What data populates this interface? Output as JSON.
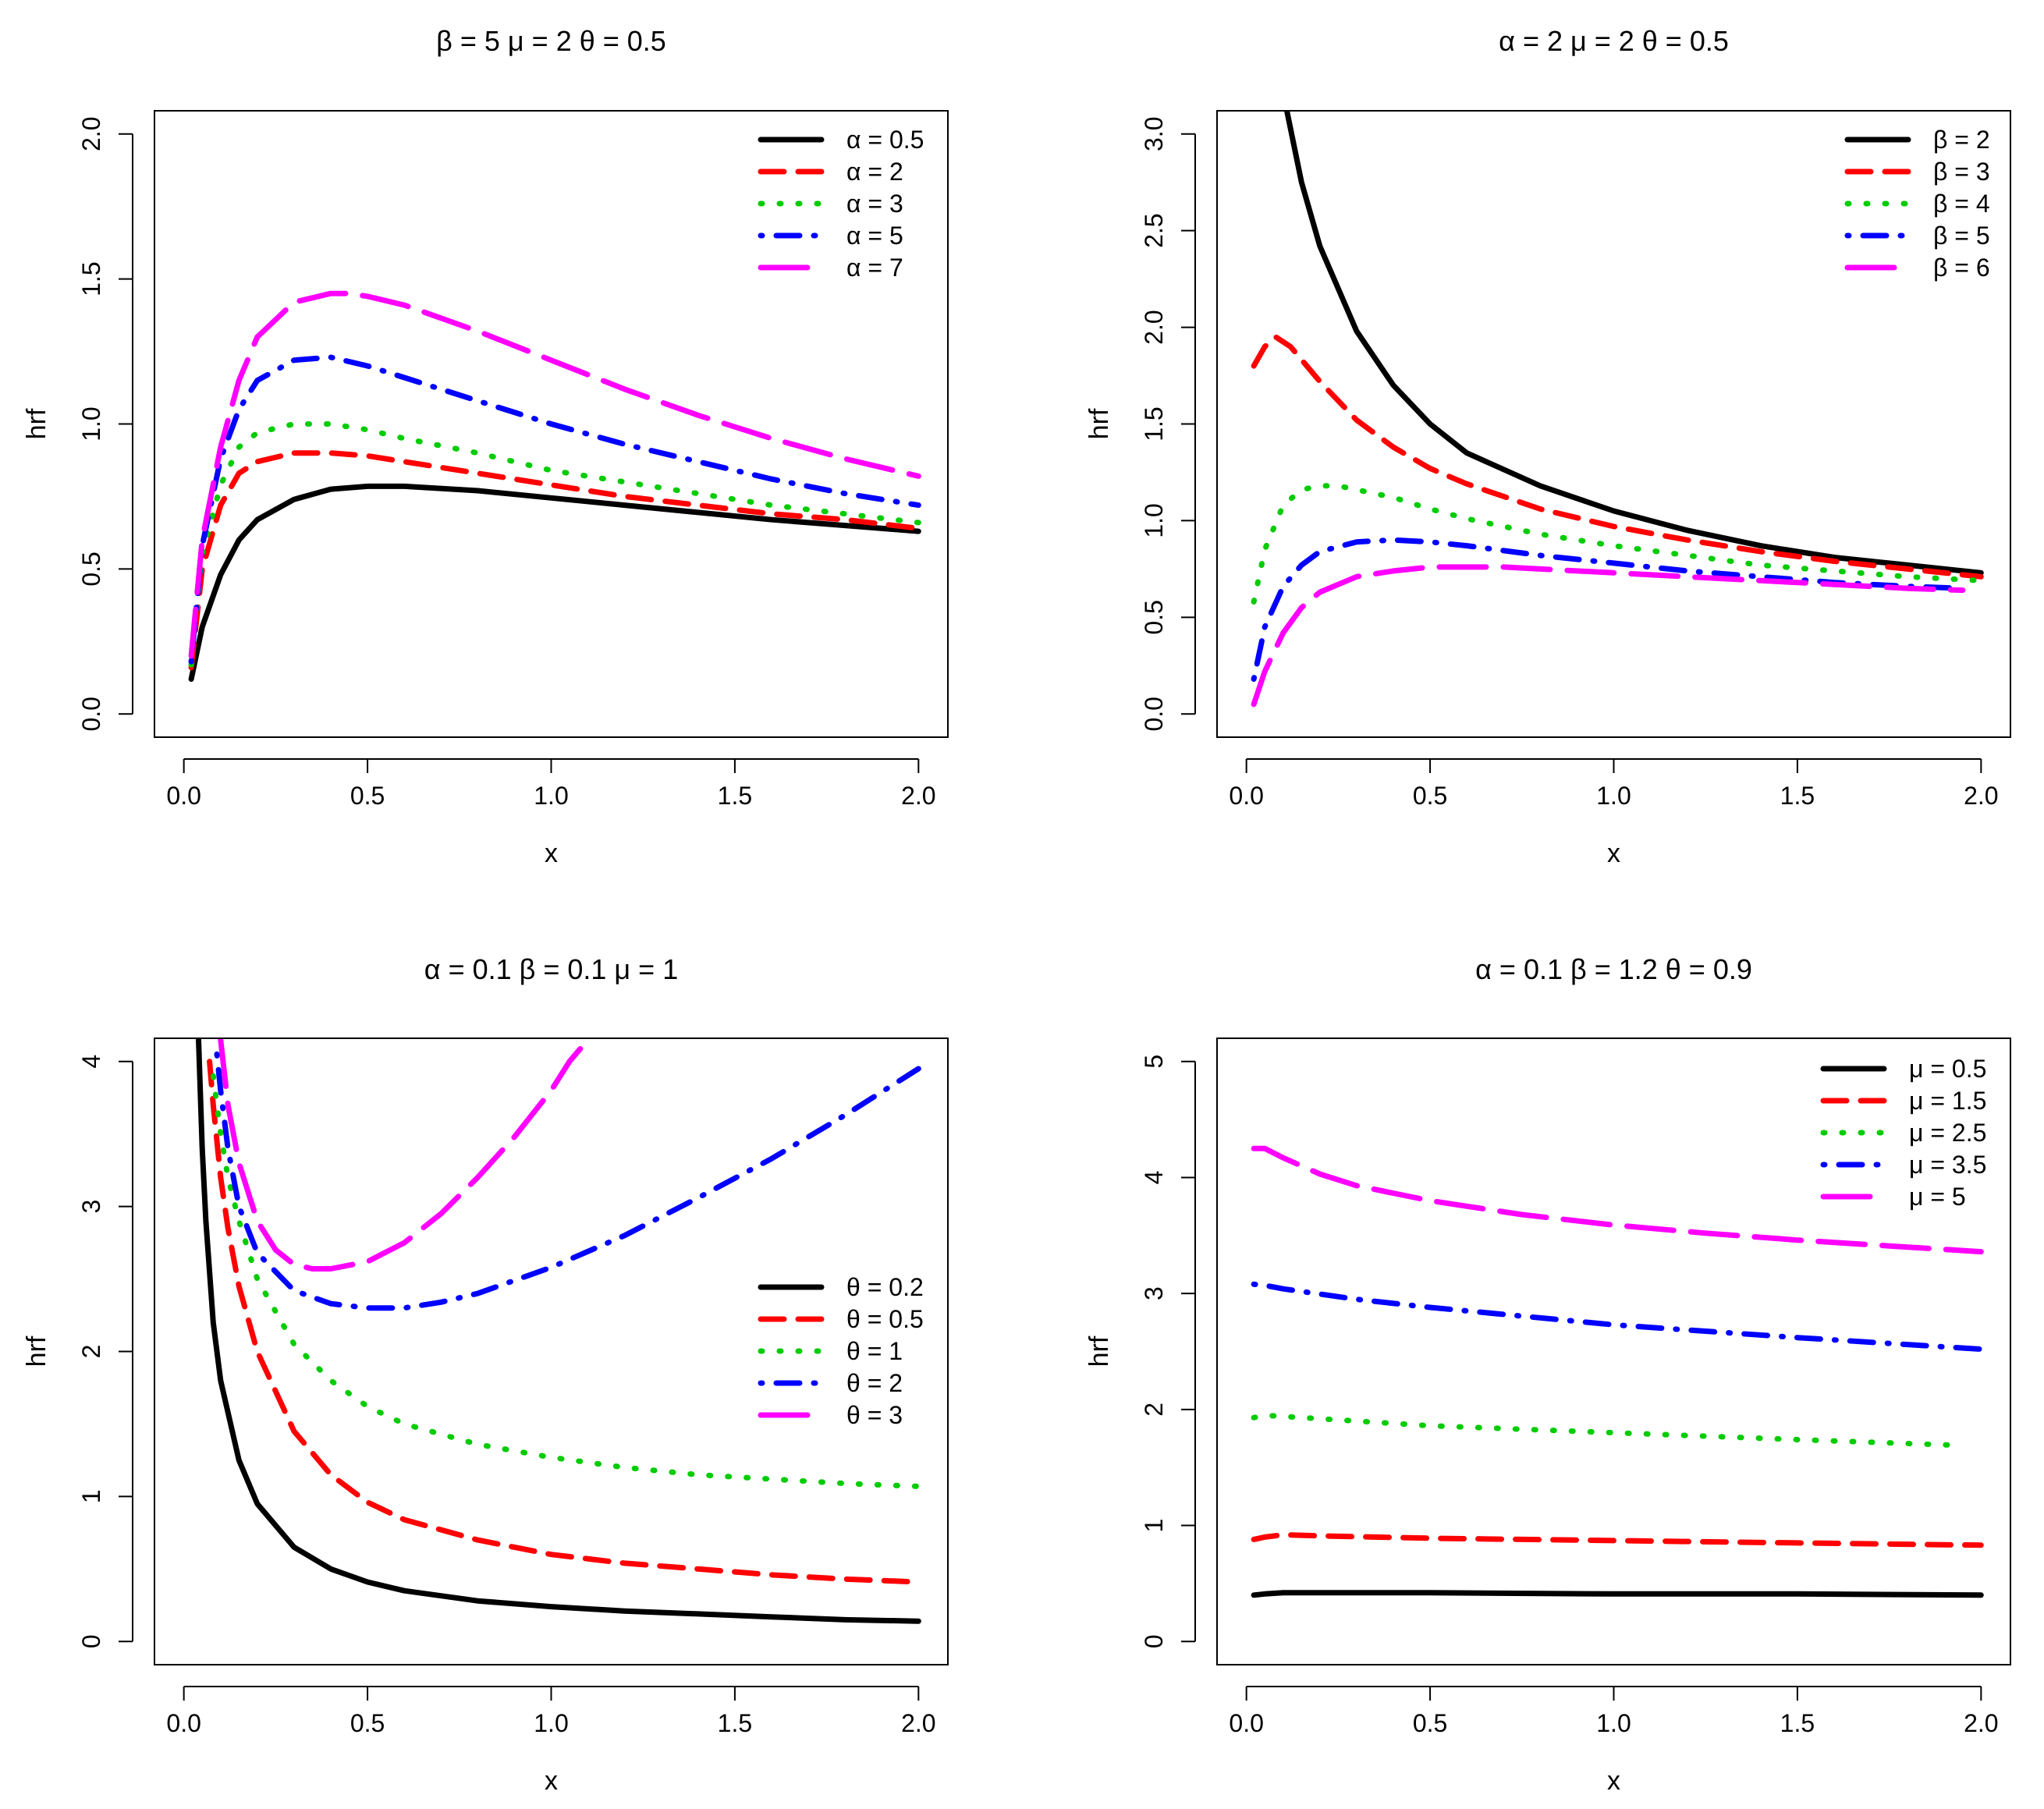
{
  "chart_data": [
    {
      "type": "line",
      "title": "β = 5  μ = 2  θ = 0.5",
      "xlabel": "x",
      "ylabel": "hrf",
      "xlim": [
        0,
        2
      ],
      "ylim": [
        0,
        2
      ],
      "xticks": [
        0,
        0.5,
        1,
        1.5,
        2
      ],
      "xtick_labels": [
        "0.0",
        "0.5",
        "1.0",
        "1.5",
        "2.0"
      ],
      "yticks": [
        0,
        0.5,
        1,
        1.5,
        2
      ],
      "ytick_labels": [
        "0.0",
        "0.5",
        "1.0",
        "1.5",
        "2.0"
      ],
      "legend_position": "top-right",
      "series": [
        {
          "name": "α = 0.5",
          "color": "#000000",
          "dash": "solid",
          "x": [
            0.02,
            0.05,
            0.1,
            0.15,
            0.2,
            0.3,
            0.4,
            0.5,
            0.6,
            0.8,
            1.0,
            1.2,
            1.4,
            1.6,
            1.8,
            2.0
          ],
          "y": [
            0.12,
            0.3,
            0.48,
            0.6,
            0.67,
            0.74,
            0.775,
            0.785,
            0.785,
            0.77,
            0.745,
            0.72,
            0.695,
            0.67,
            0.65,
            0.63
          ]
        },
        {
          "name": "α = 2",
          "color": "#ff0000",
          "dash": "dashed",
          "x": [
            0.02,
            0.05,
            0.1,
            0.15,
            0.2,
            0.3,
            0.4,
            0.5,
            0.6,
            0.8,
            1.0,
            1.2,
            1.4,
            1.6,
            1.8,
            2.0
          ],
          "y": [
            0.16,
            0.5,
            0.72,
            0.83,
            0.87,
            0.9,
            0.9,
            0.89,
            0.87,
            0.83,
            0.79,
            0.75,
            0.72,
            0.69,
            0.67,
            0.64
          ]
        },
        {
          "name": "α = 3",
          "color": "#00cc00",
          "dash": "dotted",
          "x": [
            0.02,
            0.05,
            0.1,
            0.15,
            0.2,
            0.3,
            0.4,
            0.5,
            0.6,
            0.8,
            1.0,
            1.2,
            1.4,
            1.6,
            1.8,
            2.0
          ],
          "y": [
            0.17,
            0.55,
            0.79,
            0.92,
            0.97,
            1.0,
            1.0,
            0.98,
            0.95,
            0.9,
            0.84,
            0.8,
            0.76,
            0.72,
            0.69,
            0.66
          ]
        },
        {
          "name": "α = 5",
          "color": "#0000ff",
          "dash": "dotdash",
          "x": [
            0.02,
            0.05,
            0.1,
            0.15,
            0.2,
            0.3,
            0.4,
            0.5,
            0.6,
            0.8,
            1.0,
            1.2,
            1.4,
            1.6,
            1.8,
            2.0
          ],
          "y": [
            0.18,
            0.58,
            0.88,
            1.05,
            1.15,
            1.22,
            1.23,
            1.2,
            1.16,
            1.08,
            1.0,
            0.93,
            0.87,
            0.81,
            0.76,
            0.72
          ]
        },
        {
          "name": "α = 7",
          "color": "#ff00ff",
          "dash": "longdash",
          "x": [
            0.02,
            0.05,
            0.1,
            0.15,
            0.2,
            0.3,
            0.4,
            0.45,
            0.5,
            0.6,
            0.8,
            1.0,
            1.2,
            1.4,
            1.6,
            1.8,
            2.0
          ],
          "y": [
            0.2,
            0.6,
            0.92,
            1.15,
            1.3,
            1.42,
            1.45,
            1.45,
            1.44,
            1.41,
            1.32,
            1.22,
            1.12,
            1.03,
            0.95,
            0.88,
            0.82
          ]
        }
      ]
    },
    {
      "type": "line",
      "title": "α = 2  μ = 2  θ = 0.5",
      "xlabel": "x",
      "ylabel": "hrf",
      "xlim": [
        0,
        2
      ],
      "ylim": [
        0,
        3
      ],
      "xticks": [
        0,
        0.5,
        1,
        1.5,
        2
      ],
      "xtick_labels": [
        "0.0",
        "0.5",
        "1.0",
        "1.5",
        "2.0"
      ],
      "yticks": [
        0,
        0.5,
        1,
        1.5,
        2,
        2.5,
        3
      ],
      "ytick_labels": [
        "0.0",
        "0.5",
        "1.0",
        "1.5",
        "2.0",
        "2.5",
        "3.0"
      ],
      "legend_position": "top-right",
      "series": [
        {
          "name": "β = 2",
          "color": "#000000",
          "dash": "solid",
          "x": [
            0.11,
            0.15,
            0.2,
            0.3,
            0.4,
            0.5,
            0.6,
            0.8,
            1.0,
            1.2,
            1.4,
            1.6,
            1.8,
            2.0
          ],
          "y": [
            3.12,
            2.75,
            2.42,
            1.98,
            1.7,
            1.5,
            1.35,
            1.18,
            1.05,
            0.95,
            0.87,
            0.81,
            0.77,
            0.73
          ]
        },
        {
          "name": "β = 3",
          "color": "#ff0000",
          "dash": "dashed",
          "x": [
            0.02,
            0.05,
            0.08,
            0.12,
            0.2,
            0.3,
            0.4,
            0.5,
            0.6,
            0.8,
            1.0,
            1.2,
            1.4,
            1.6,
            1.8,
            2.0
          ],
          "y": [
            1.8,
            1.9,
            1.95,
            1.9,
            1.72,
            1.52,
            1.38,
            1.27,
            1.19,
            1.06,
            0.97,
            0.9,
            0.84,
            0.79,
            0.75,
            0.71
          ]
        },
        {
          "name": "β = 4",
          "color": "#00cc00",
          "dash": "dotted",
          "x": [
            0.02,
            0.05,
            0.1,
            0.15,
            0.2,
            0.25,
            0.3,
            0.4,
            0.5,
            0.6,
            0.8,
            1.0,
            1.2,
            1.4,
            1.6,
            1.8,
            2.0
          ],
          "y": [
            0.58,
            0.85,
            1.08,
            1.16,
            1.18,
            1.18,
            1.16,
            1.12,
            1.06,
            1.01,
            0.93,
            0.87,
            0.82,
            0.77,
            0.74,
            0.71,
            0.69
          ]
        },
        {
          "name": "β = 5",
          "color": "#0000ff",
          "dash": "dotdash",
          "x": [
            0.02,
            0.05,
            0.1,
            0.15,
            0.2,
            0.3,
            0.4,
            0.5,
            0.6,
            0.8,
            1.0,
            1.2,
            1.4,
            1.6,
            1.8,
            1.95
          ],
          "y": [
            0.18,
            0.45,
            0.66,
            0.77,
            0.84,
            0.89,
            0.9,
            0.89,
            0.87,
            0.82,
            0.78,
            0.74,
            0.71,
            0.68,
            0.66,
            0.65
          ]
        },
        {
          "name": "β = 6",
          "color": "#ff00ff",
          "dash": "longdash",
          "x": [
            0.02,
            0.05,
            0.1,
            0.15,
            0.2,
            0.3,
            0.4,
            0.5,
            0.6,
            0.7,
            0.8,
            1.0,
            1.2,
            1.4,
            1.6,
            1.8,
            1.95
          ],
          "y": [
            0.05,
            0.22,
            0.42,
            0.55,
            0.63,
            0.71,
            0.74,
            0.76,
            0.76,
            0.76,
            0.75,
            0.73,
            0.71,
            0.69,
            0.67,
            0.65,
            0.64
          ]
        }
      ]
    },
    {
      "type": "line",
      "title": "α = 0.1  β = 0.1  μ = 1",
      "xlabel": "x",
      "ylabel": "hrf",
      "xlim": [
        0,
        2
      ],
      "ylim": [
        0,
        4
      ],
      "xticks": [
        0,
        0.5,
        1,
        1.5,
        2
      ],
      "xtick_labels": [
        "0.0",
        "0.5",
        "1.0",
        "1.5",
        "2.0"
      ],
      "yticks": [
        0,
        1,
        2,
        3,
        4
      ],
      "ytick_labels": [
        "0",
        "1",
        "2",
        "3",
        "4"
      ],
      "legend_position": "right",
      "series": [
        {
          "name": "θ = 0.2",
          "color": "#000000",
          "dash": "solid",
          "x": [
            0.04,
            0.05,
            0.06,
            0.08,
            0.1,
            0.15,
            0.2,
            0.3,
            0.4,
            0.5,
            0.6,
            0.8,
            1.0,
            1.2,
            1.4,
            1.6,
            1.8,
            2.0
          ],
          "y": [
            4.15,
            3.4,
            2.9,
            2.2,
            1.8,
            1.25,
            0.95,
            0.65,
            0.5,
            0.41,
            0.35,
            0.28,
            0.24,
            0.21,
            0.19,
            0.17,
            0.15,
            0.14
          ]
        },
        {
          "name": "θ = 0.5",
          "color": "#ff0000",
          "dash": "dashed",
          "x": [
            0.07,
            0.08,
            0.1,
            0.12,
            0.15,
            0.2,
            0.3,
            0.4,
            0.5,
            0.6,
            0.8,
            1.0,
            1.2,
            1.4,
            1.6,
            1.8,
            2.0
          ],
          "y": [
            4.0,
            3.7,
            3.2,
            2.85,
            2.45,
            2.0,
            1.45,
            1.15,
            0.96,
            0.84,
            0.7,
            0.6,
            0.54,
            0.5,
            0.46,
            0.43,
            0.41
          ]
        },
        {
          "name": "θ = 1",
          "color": "#00cc00",
          "dash": "dotted",
          "x": [
            0.08,
            0.1,
            0.12,
            0.15,
            0.2,
            0.3,
            0.4,
            0.5,
            0.6,
            0.8,
            1.0,
            1.2,
            1.4,
            1.6,
            1.8,
            2.0
          ],
          "y": [
            3.9,
            3.5,
            3.2,
            2.9,
            2.5,
            2.05,
            1.8,
            1.62,
            1.5,
            1.36,
            1.27,
            1.2,
            1.15,
            1.12,
            1.09,
            1.07
          ]
        },
        {
          "name": "θ = 2",
          "color": "#0000ff",
          "dash": "dotdash",
          "x": [
            0.09,
            0.1,
            0.12,
            0.15,
            0.2,
            0.3,
            0.4,
            0.5,
            0.6,
            0.7,
            0.8,
            1.0,
            1.2,
            1.4,
            1.6,
            1.8,
            2.0
          ],
          "y": [
            4.05,
            3.8,
            3.4,
            3.0,
            2.68,
            2.42,
            2.33,
            2.3,
            2.3,
            2.34,
            2.4,
            2.58,
            2.8,
            3.06,
            3.33,
            3.63,
            3.95
          ]
        },
        {
          "name": "θ = 3",
          "color": "#ff00ff",
          "dash": "longdash",
          "x": [
            0.1,
            0.12,
            0.15,
            0.2,
            0.25,
            0.3,
            0.35,
            0.4,
            0.5,
            0.6,
            0.7,
            0.8,
            0.9,
            1.0,
            1.05,
            1.1
          ],
          "y": [
            4.15,
            3.7,
            3.3,
            2.9,
            2.7,
            2.6,
            2.57,
            2.57,
            2.62,
            2.75,
            2.95,
            3.2,
            3.48,
            3.8,
            4.0,
            4.15
          ]
        }
      ]
    },
    {
      "type": "line",
      "title": "α = 0.1  β = 1.2  θ = 0.9",
      "xlabel": "x",
      "ylabel": "hrf",
      "xlim": [
        0,
        2
      ],
      "ylim": [
        0,
        5
      ],
      "xticks": [
        0,
        0.5,
        1,
        1.5,
        2
      ],
      "xtick_labels": [
        "0.0",
        "0.5",
        "1.0",
        "1.5",
        "2.0"
      ],
      "yticks": [
        0,
        1,
        2,
        3,
        4,
        5
      ],
      "ytick_labels": [
        "0",
        "1",
        "2",
        "3",
        "4",
        "5"
      ],
      "legend_position": "top-right",
      "series": [
        {
          "name": "μ = 0.5",
          "color": "#000000",
          "dash": "solid",
          "x": [
            0.02,
            0.05,
            0.1,
            0.2,
            0.5,
            1.0,
            1.5,
            2.0
          ],
          "y": [
            0.4,
            0.41,
            0.42,
            0.42,
            0.42,
            0.41,
            0.41,
            0.4
          ]
        },
        {
          "name": "μ = 1.5",
          "color": "#ff0000",
          "dash": "dashed",
          "x": [
            0.02,
            0.05,
            0.1,
            0.2,
            0.5,
            1.0,
            1.5,
            2.0
          ],
          "y": [
            0.88,
            0.9,
            0.92,
            0.91,
            0.89,
            0.87,
            0.85,
            0.83
          ]
        },
        {
          "name": "μ = 2.5",
          "color": "#00cc00",
          "dash": "dotted",
          "x": [
            0.02,
            0.05,
            0.1,
            0.3,
            0.5,
            1.0,
            1.5,
            1.95
          ],
          "y": [
            1.93,
            1.95,
            1.94,
            1.9,
            1.86,
            1.8,
            1.74,
            1.69
          ]
        },
        {
          "name": "μ = 3.5",
          "color": "#0000ff",
          "dash": "dotdash",
          "x": [
            0.02,
            0.05,
            0.1,
            0.3,
            0.5,
            1.0,
            1.5,
            2.0
          ],
          "y": [
            3.08,
            3.07,
            3.04,
            2.95,
            2.88,
            2.73,
            2.62,
            2.52
          ]
        },
        {
          "name": "μ = 5",
          "color": "#ff00ff",
          "dash": "longdash",
          "x": [
            0.02,
            0.05,
            0.1,
            0.2,
            0.3,
            0.5,
            0.75,
            1.0,
            1.25,
            1.5,
            1.75,
            2.0
          ],
          "y": [
            4.25,
            4.25,
            4.17,
            4.03,
            3.93,
            3.8,
            3.68,
            3.59,
            3.52,
            3.46,
            3.41,
            3.36
          ]
        }
      ]
    }
  ]
}
